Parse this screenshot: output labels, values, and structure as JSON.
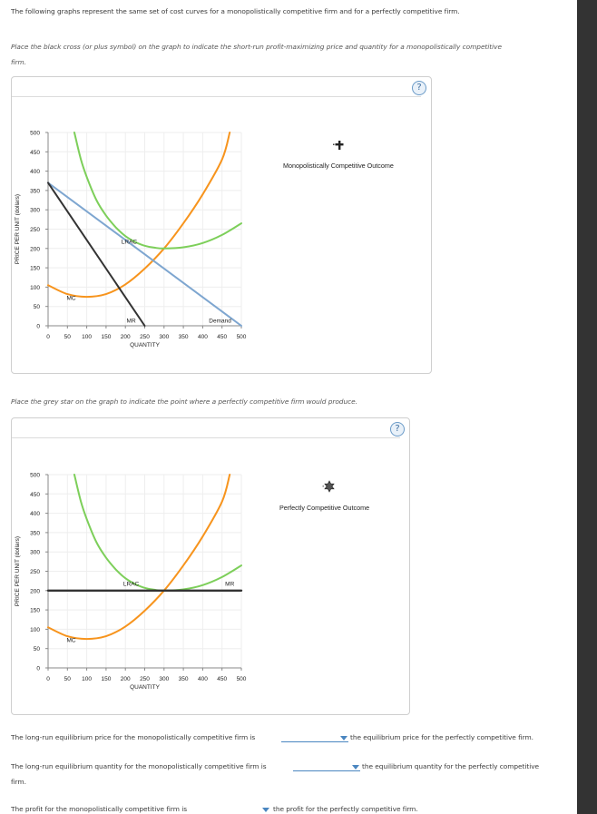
{
  "intro_text": "The following graphs represent the same set of cost curves for a monopolistically competitive firm and for a perfectly competitive firm.",
  "instruction_1_line1": "Place the black cross (or plus symbol) on the graph to indicate the short-run profit-maximizing price and quantity for a monopolistically competitive",
  "instruction_1_line2": "firm.",
  "instruction_2": "Place the grey star on the graph to indicate the point where a perfectly competitive firm would produce.",
  "help_icon_label": "?",
  "graph1": {
    "palette_label": "Monopolistically Competitive Outcome",
    "palette_icon": "black-cross",
    "ylabel": "PRICE PER UNIT (dollars)",
    "xlabel": "QUANTITY",
    "labels": {
      "lrac": "LRAC",
      "mc": "MC",
      "mr": "MR",
      "demand": "Demand"
    }
  },
  "graph2": {
    "palette_label": "Perfectly Competitive Outcome",
    "palette_icon": "grey-star",
    "ylabel": "PRICE PER UNIT (dollars)",
    "xlabel": "QUANTITY",
    "labels": {
      "lrac": "LRAC",
      "mc": "MC",
      "mr": "MR"
    }
  },
  "questions": [
    {
      "before": "The long-run equilibrium price for the monopolistically competitive firm is",
      "selected": "",
      "after": "the equilibrium price for the perfectly competitive firm."
    },
    {
      "before": "The long-run equilibrium quantity for the monopolistically competitive firm is",
      "selected": "",
      "after": "the equilibrium quantity for the perfectly competitive",
      "after_line2": "firm."
    },
    {
      "before": "The profit for the monopolistically competitive firm is",
      "selected": "",
      "after": "the profit for the perfectly competitive firm."
    }
  ],
  "colors": {
    "mc": "#f7941d",
    "lrac": "#7dcf5a",
    "demand": "#7ea6d0",
    "mr": "#333333",
    "dropdown": "#4a86c0"
  },
  "chart_data": [
    {
      "type": "line",
      "title": "Monopolistically Competitive Firm",
      "xlabel": "QUANTITY",
      "ylabel": "PRICE PER UNIT (dollars)",
      "xlim": [
        0,
        500
      ],
      "ylim": [
        0,
        500
      ],
      "x_ticks": [
        0,
        50,
        100,
        150,
        200,
        250,
        300,
        350,
        400,
        450,
        500
      ],
      "y_ticks": [
        0,
        50,
        100,
        150,
        200,
        250,
        300,
        350,
        400,
        450,
        500
      ],
      "grid": true,
      "series": [
        {
          "name": "MC",
          "color": "#f7941d",
          "points": [
            [
              0,
              105
            ],
            [
              50,
              82
            ],
            [
              100,
              75
            ],
            [
              150,
              82
            ],
            [
              200,
              107
            ],
            [
              250,
              148
            ],
            [
              300,
              200
            ],
            [
              350,
              265
            ],
            [
              400,
              340
            ],
            [
              450,
              430
            ],
            [
              470,
              500
            ]
          ]
        },
        {
          "name": "LRAC",
          "color": "#7dcf5a",
          "points": [
            [
              68,
              500
            ],
            [
              85,
              430
            ],
            [
              100,
              385
            ],
            [
              125,
              325
            ],
            [
              150,
              285
            ],
            [
              175,
              255
            ],
            [
              200,
              232
            ],
            [
              225,
              217
            ],
            [
              250,
              207
            ],
            [
              275,
              202
            ],
            [
              300,
              200
            ],
            [
              350,
              203
            ],
            [
              400,
              214
            ],
            [
              450,
              235
            ],
            [
              500,
              265
            ]
          ]
        },
        {
          "name": "Demand",
          "color": "#7ea6d0",
          "points": [
            [
              0,
              370
            ],
            [
              500,
              0
            ]
          ]
        },
        {
          "name": "MR",
          "color": "#333333",
          "points": [
            [
              0,
              370
            ],
            [
              250,
              0
            ]
          ]
        }
      ]
    },
    {
      "type": "line",
      "title": "Perfectly Competitive Firm",
      "xlabel": "QUANTITY",
      "ylabel": "PRICE PER UNIT (dollars)",
      "xlim": [
        0,
        500
      ],
      "ylim": [
        0,
        500
      ],
      "x_ticks": [
        0,
        50,
        100,
        150,
        200,
        250,
        300,
        350,
        400,
        450,
        500
      ],
      "y_ticks": [
        0,
        50,
        100,
        150,
        200,
        250,
        300,
        350,
        400,
        450,
        500
      ],
      "grid": true,
      "series": [
        {
          "name": "MC",
          "color": "#f7941d",
          "points": [
            [
              0,
              105
            ],
            [
              50,
              82
            ],
            [
              100,
              75
            ],
            [
              150,
              82
            ],
            [
              200,
              107
            ],
            [
              250,
              148
            ],
            [
              300,
              200
            ],
            [
              350,
              265
            ],
            [
              400,
              340
            ],
            [
              450,
              430
            ],
            [
              470,
              500
            ]
          ]
        },
        {
          "name": "LRAC",
          "color": "#7dcf5a",
          "points": [
            [
              68,
              500
            ],
            [
              85,
              430
            ],
            [
              100,
              385
            ],
            [
              125,
              325
            ],
            [
              150,
              285
            ],
            [
              175,
              255
            ],
            [
              200,
              232
            ],
            [
              225,
              217
            ],
            [
              250,
              207
            ],
            [
              275,
              202
            ],
            [
              300,
              200
            ],
            [
              350,
              203
            ],
            [
              400,
              214
            ],
            [
              450,
              235
            ],
            [
              500,
              265
            ]
          ]
        },
        {
          "name": "MR",
          "color": "#333333",
          "points": [
            [
              0,
              200
            ],
            [
              500,
              200
            ]
          ]
        }
      ]
    }
  ]
}
